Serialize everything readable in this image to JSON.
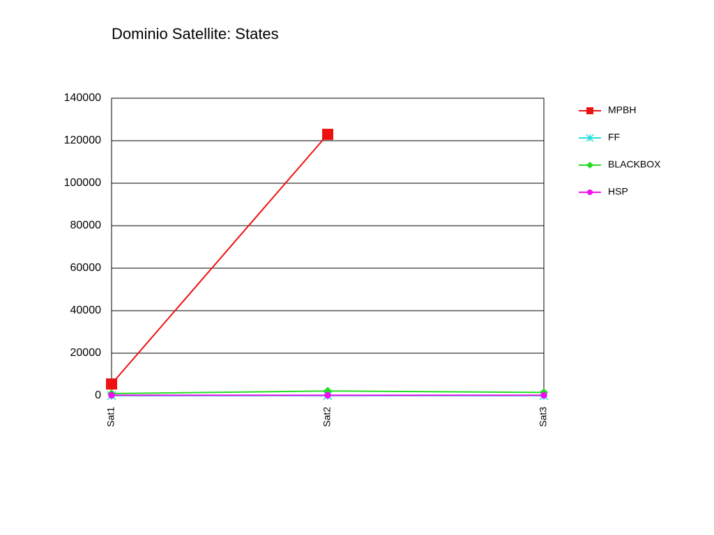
{
  "chart_data": {
    "type": "line",
    "title": "Dominio Satellite: States",
    "categories": [
      "Sat1",
      "Sat2",
      "Sat3"
    ],
    "series": [
      {
        "name": "MPBH",
        "color": "#ee1111",
        "marker": "square",
        "values": [
          5500,
          123000,
          null
        ]
      },
      {
        "name": "FF",
        "color": "#22dddd",
        "marker": "asterisk",
        "values": [
          0,
          0,
          0
        ]
      },
      {
        "name": "BLACKBOX",
        "color": "#22dd22",
        "marker": "diamond",
        "values": [
          1000,
          2200,
          1500
        ]
      },
      {
        "name": "HSP",
        "color": "#ee11ee",
        "marker": "circle",
        "values": [
          200,
          200,
          200
        ]
      }
    ],
    "ylim": [
      0,
      140000
    ],
    "yticks": [
      0,
      20000,
      40000,
      60000,
      80000,
      100000,
      120000,
      140000
    ],
    "grid": true,
    "legend": "right"
  }
}
